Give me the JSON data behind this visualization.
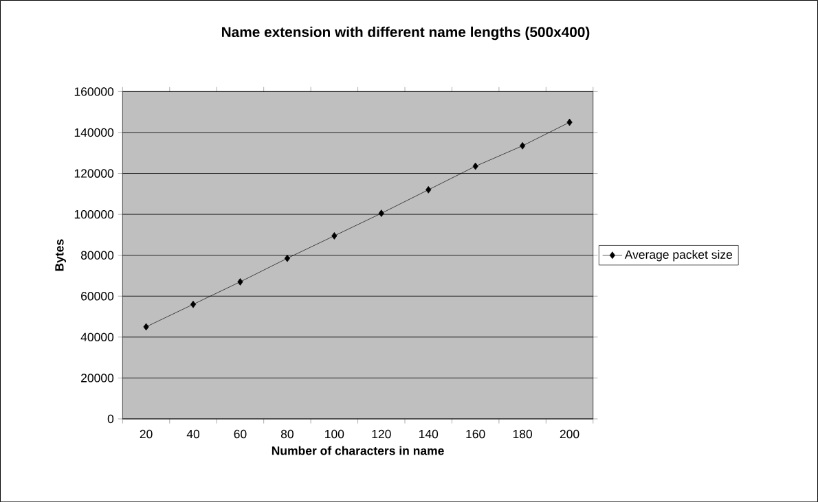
{
  "chart_data": {
    "type": "line",
    "title": "Name extension with different name lengths (500x400)",
    "xlabel": "Number of characters in name",
    "ylabel": "Bytes",
    "categories": [
      "20",
      "40",
      "60",
      "80",
      "100",
      "120",
      "140",
      "160",
      "180",
      "200"
    ],
    "series": [
      {
        "name": "Average packet size",
        "color": "#000000",
        "values": [
          45000,
          56000,
          67000,
          78500,
          89500,
          100500,
          112000,
          123500,
          133500,
          145000
        ]
      }
    ],
    "ylim": [
      0,
      160000
    ],
    "yticks": [
      0,
      20000,
      40000,
      60000,
      80000,
      100000,
      120000,
      140000,
      160000
    ],
    "grid": "y",
    "legend": "right",
    "marker": "diamond",
    "line_style": "solid"
  }
}
